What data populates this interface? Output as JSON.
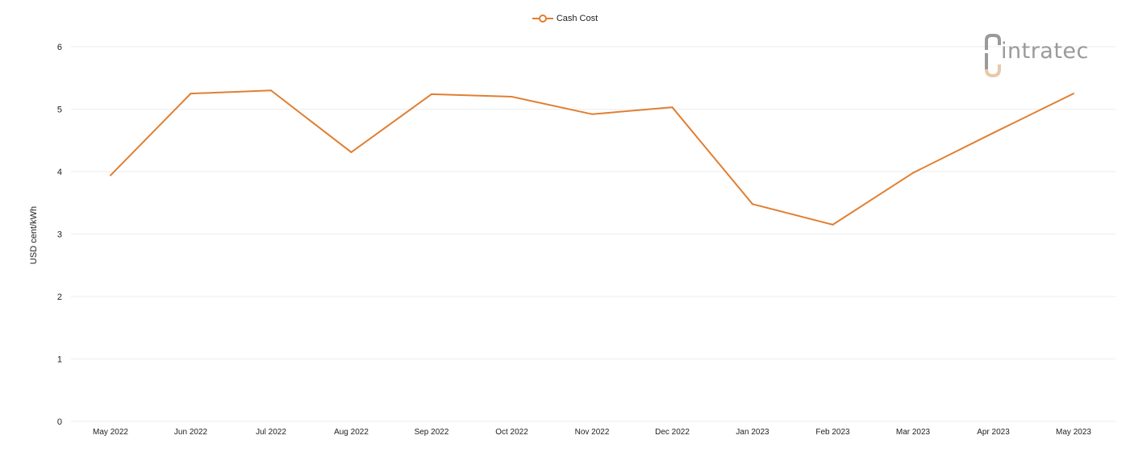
{
  "chart_data": {
    "type": "line",
    "title": "",
    "xlabel": "",
    "ylabel": "USD cent/kWh",
    "legend_position": "top-center",
    "grid": true,
    "ylim": [
      0,
      6
    ],
    "yticks": [
      0,
      1,
      2,
      3,
      4,
      5,
      6
    ],
    "categories": [
      "May 2022",
      "Jun 2022",
      "Jul 2022",
      "Aug 2022",
      "Sep 2022",
      "Oct 2022",
      "Nov 2022",
      "Dec 2022",
      "Jan 2023",
      "Feb 2023",
      "Mar 2023",
      "Apr 2023",
      "May 2023"
    ],
    "series": [
      {
        "name": "Cash Cost",
        "color": "#e07f32",
        "values": [
          3.94,
          5.25,
          5.3,
          4.31,
          5.24,
          5.2,
          4.92,
          5.03,
          3.48,
          3.15,
          3.98,
          4.62,
          5.25
        ]
      }
    ]
  },
  "logo": {
    "text": "intratec",
    "icon": "intratec-logo-icon",
    "colors": [
      "#9a9a9a",
      "#e8c9a8"
    ]
  }
}
